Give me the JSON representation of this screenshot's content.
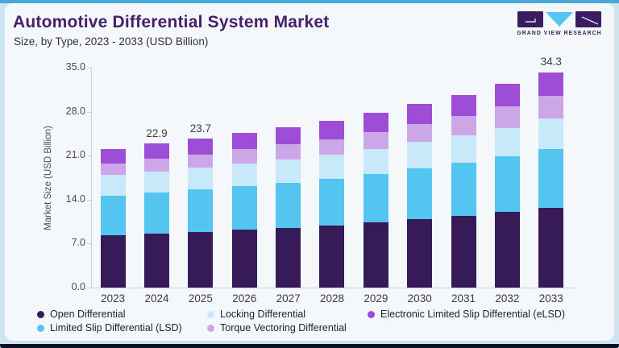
{
  "page": {
    "title": "Automotive Differential System Market",
    "subtitle": "Size, by Type, 2023 - 2033 (USD Billion)",
    "brand": {
      "name": "GRAND VIEW RESEARCH"
    }
  },
  "colors": {
    "accent_strip": "#47A7D8",
    "page_bg": "#CDE4F1",
    "card_bg": "#F5F8FB",
    "bottom_strip": "#0D1024",
    "title_text": "#45206C",
    "subtitle_text": "#34313B",
    "axis_line": "#C8CEDA",
    "axis_text": "#49494F",
    "label_text": "#3A3A40",
    "legend_text": "#21203A",
    "logo_purple": "#3A1D5F",
    "logo_blue": "#55C5F1",
    "open": "#371A58",
    "lsd": "#54C5F1",
    "locking": "#C7E9FA",
    "tvd": "#CBA7E7",
    "elsd": "#9E4DD7"
  },
  "chart_data": {
    "type": "bar",
    "stacked": true,
    "title": "Automotive Differential System Market",
    "subtitle": "Size, by Type, 2023 - 2033 (USD Billion)",
    "xlabel": "",
    "ylabel": "Market Size (USD Billion)",
    "ylim": [
      0,
      35
    ],
    "ytick_labels": [
      "0.0",
      "7.0",
      "14.0",
      "21.0",
      "28.0",
      "35.0"
    ],
    "grid": false,
    "legend_position": "bottom",
    "categories": [
      "2023",
      "2024",
      "2025",
      "2026",
      "2027",
      "2028",
      "2029",
      "2030",
      "2031",
      "2032",
      "2033"
    ],
    "series": [
      {
        "name": "Open Differential",
        "color_key": "open",
        "values": [
          8.3,
          8.6,
          8.9,
          9.2,
          9.5,
          9.9,
          10.4,
          10.9,
          11.4,
          12.0,
          12.7
        ]
      },
      {
        "name": "Limited Slip Differential (LSD)",
        "color_key": "lsd",
        "values": [
          6.3,
          6.5,
          6.7,
          6.9,
          7.2,
          7.4,
          7.7,
          8.1,
          8.5,
          8.9,
          9.4
        ]
      },
      {
        "name": "Locking Differential",
        "color_key": "locking",
        "values": [
          3.3,
          3.4,
          3.5,
          3.6,
          3.7,
          3.85,
          4.0,
          4.15,
          4.35,
          4.55,
          4.8
        ]
      },
      {
        "name": "Torque Vectoring Differential",
        "color_key": "tvd",
        "values": [
          1.9,
          2.0,
          2.1,
          2.3,
          2.4,
          2.5,
          2.7,
          2.9,
          3.1,
          3.35,
          3.6
        ]
      },
      {
        "name": "Electronic Limited Slip Differential (eLSD)",
        "color_key": "elsd",
        "values": [
          2.3,
          2.4,
          2.5,
          2.6,
          2.7,
          2.9,
          3.0,
          3.2,
          3.35,
          3.6,
          3.8
        ]
      }
    ],
    "stack_order_bottom_to_top": [
      "Open Differential",
      "Limited Slip Differential (LSD)",
      "Locking Differential",
      "Torque Vectoring Differential",
      "Electronic Limited Slip Differential (eLSD)"
    ],
    "totals": [
      22.1,
      22.9,
      23.7,
      24.6,
      25.5,
      26.6,
      27.8,
      29.3,
      30.7,
      32.4,
      34.3
    ],
    "total_labels": {
      "2024": "22.9",
      "2025": "23.7",
      "2033": "34.3"
    }
  },
  "legend": {
    "items": [
      {
        "label": "Open Differential",
        "color_key": "open"
      },
      {
        "label": "Locking Differential",
        "color_key": "locking"
      },
      {
        "label": "Electronic Limited Slip Differential (eLSD)",
        "color_key": "elsd"
      },
      {
        "label": "Limited Slip Differential (LSD)",
        "color_key": "lsd"
      },
      {
        "label": "Torque Vectoring Differential",
        "color_key": "tvd"
      }
    ]
  }
}
